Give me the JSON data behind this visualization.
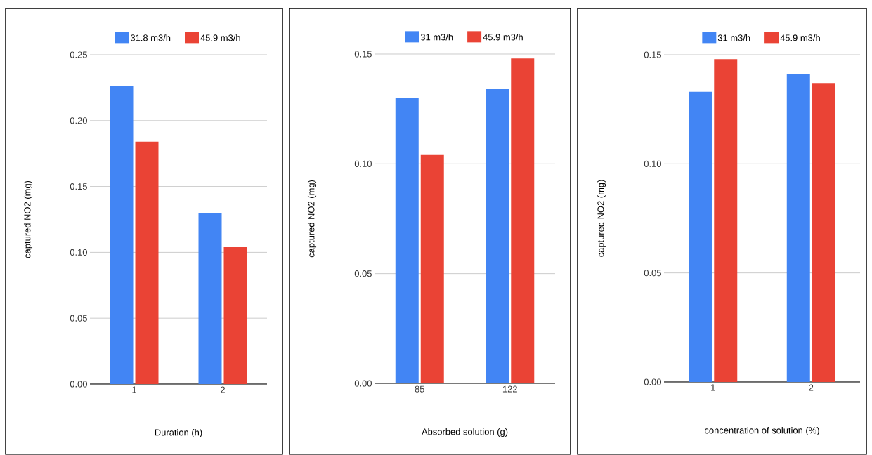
{
  "chart_data": [
    {
      "type": "bar",
      "xlabel": "Duration (h)",
      "ylabel": "captured NO2 (mg)",
      "categories": [
        "1",
        "2"
      ],
      "series": [
        {
          "name": "31.8 m3/h",
          "color": "#4285f4",
          "values": [
            0.226,
            0.13
          ]
        },
        {
          "name": "45.9 m3/h",
          "color": "#ea4335",
          "values": [
            0.184,
            0.104
          ]
        }
      ],
      "ylim": [
        0,
        0.25
      ],
      "yticks": [
        {
          "value": 0,
          "label": "0.00"
        },
        {
          "value": 0.05,
          "label": "0.05"
        },
        {
          "value": 0.1,
          "label": "0.10"
        },
        {
          "value": 0.15,
          "label": "0.15"
        },
        {
          "value": 0.2,
          "label": "0.20"
        },
        {
          "value": 0.25,
          "label": "0.25"
        }
      ],
      "grid": "y",
      "legend": "top"
    },
    {
      "type": "bar",
      "xlabel": "Absorbed solution (g)",
      "ylabel": "captured NO2 (mg)",
      "categories": [
        "85",
        "122"
      ],
      "series": [
        {
          "name": "31 m3/h",
          "color": "#4285f4",
          "values": [
            0.13,
            0.134
          ]
        },
        {
          "name": "45.9 m3/h",
          "color": "#ea4335",
          "values": [
            0.104,
            0.148
          ]
        }
      ],
      "ylim": [
        0,
        0.15
      ],
      "yticks": [
        {
          "value": 0,
          "label": "0.00"
        },
        {
          "value": 0.05,
          "label": "0.05"
        },
        {
          "value": 0.1,
          "label": "0.10"
        },
        {
          "value": 0.15,
          "label": "0.15"
        }
      ],
      "grid": "y",
      "legend": "top"
    },
    {
      "type": "bar",
      "xlabel": "concentration of solution (%)",
      "ylabel": "captured NO2 (mg)",
      "categories": [
        "1",
        "2"
      ],
      "series": [
        {
          "name": "31 m3/h",
          "color": "#4285f4",
          "values": [
            0.133,
            0.141
          ]
        },
        {
          "name": "45.9 m3/h",
          "color": "#ea4335",
          "values": [
            0.148,
            0.137
          ]
        }
      ],
      "ylim": [
        0,
        0.15
      ],
      "yticks": [
        {
          "value": 0,
          "label": "0.00"
        },
        {
          "value": 0.05,
          "label": "0.05"
        },
        {
          "value": 0.1,
          "label": "0.10"
        },
        {
          "value": 0.15,
          "label": "0.15"
        }
      ],
      "grid": "y",
      "legend": "top"
    }
  ]
}
